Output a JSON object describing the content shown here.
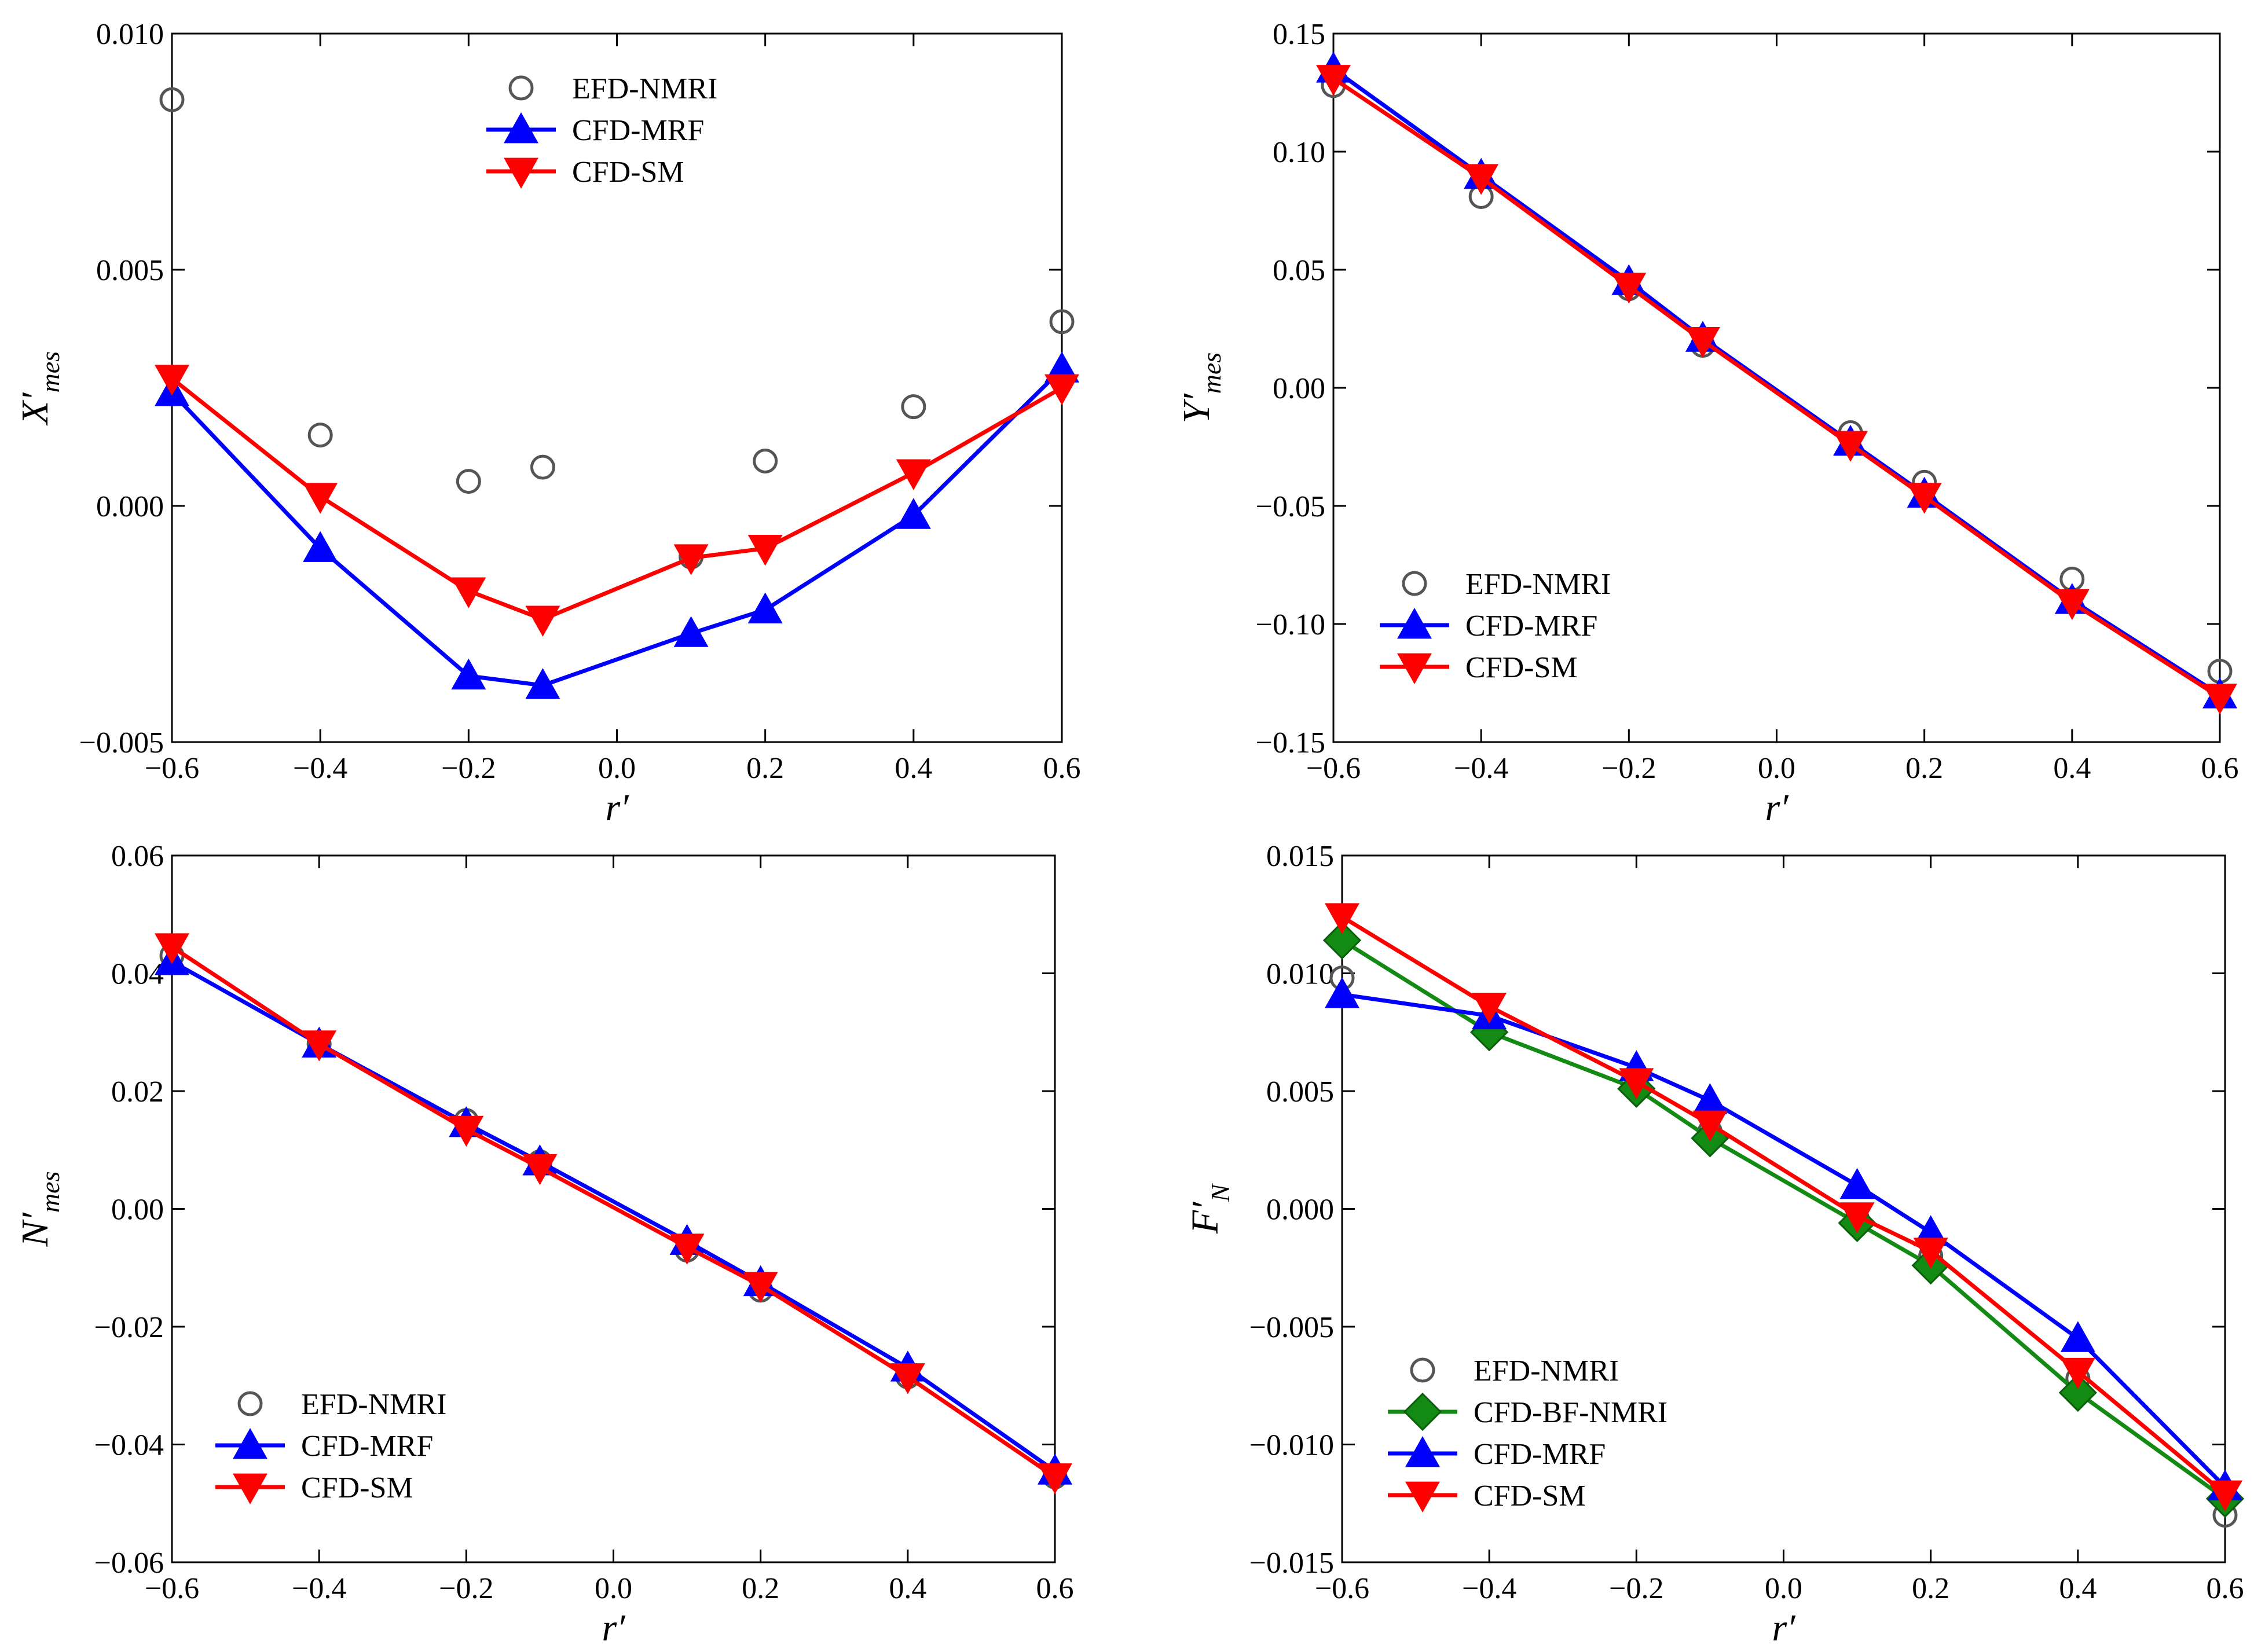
{
  "chart_data": [
    {
      "type": "line",
      "panel": "top-left",
      "xlabel": "r′",
      "ylabel": {
        "main": "X′",
        "sub": "mes"
      },
      "xlim": [
        -0.6,
        0.6
      ],
      "ylim": [
        -0.005,
        0.01
      ],
      "xticks": [
        -0.6,
        -0.4,
        -0.2,
        0.0,
        0.2,
        0.4,
        0.6
      ],
      "xtick_labels": [
        "−0.6",
        "−0.4",
        "−0.2",
        "0.0",
        "0.2",
        "0.4",
        "0.6"
      ],
      "yticks": [
        -0.005,
        0.0,
        0.005,
        0.01
      ],
      "ytick_labels": [
        "−0.005",
        "0.000",
        "0.005",
        "0.010"
      ],
      "legend_position": "top-center",
      "x": [
        -0.6,
        -0.4,
        -0.2,
        -0.1,
        0.1,
        0.2,
        0.4,
        0.6
      ],
      "series": [
        {
          "name": "EFD-NMRI",
          "marker": "circle",
          "color": "#555555",
          "line": false,
          "values": [
            0.0086,
            0.0015,
            0.00052,
            0.00082,
            -0.00108,
            0.00095,
            0.0021,
            0.0039
          ]
        },
        {
          "name": "CFD-MRF",
          "marker": "triangle-up",
          "color": "#0000ff",
          "line": true,
          "values": [
            0.0024,
            -0.0009,
            -0.0036,
            -0.0038,
            -0.0027,
            -0.0022,
            -0.0002,
            0.0029
          ]
        },
        {
          "name": "CFD-SM",
          "marker": "triangle-down",
          "color": "#ff0000",
          "line": true,
          "values": [
            0.0027,
            0.0002,
            -0.0018,
            -0.0024,
            -0.0011,
            -0.0009,
            0.0007,
            0.0025
          ]
        }
      ]
    },
    {
      "type": "line",
      "panel": "top-right",
      "xlabel": "r′",
      "ylabel": {
        "main": "Y′",
        "sub": "mes"
      },
      "xlim": [
        -0.6,
        0.6
      ],
      "ylim": [
        -0.15,
        0.15
      ],
      "xticks": [
        -0.6,
        -0.4,
        -0.2,
        0.0,
        0.2,
        0.4,
        0.6
      ],
      "xtick_labels": [
        "−0.6",
        "−0.4",
        "−0.2",
        "0.0",
        "0.2",
        "0.4",
        "0.6"
      ],
      "yticks": [
        -0.15,
        -0.1,
        -0.05,
        0.0,
        0.05,
        0.1,
        0.15
      ],
      "ytick_labels": [
        "−0.15",
        "−0.10",
        "−0.05",
        "0.00",
        "0.05",
        "0.10",
        "0.15"
      ],
      "legend_position": "bottom-left",
      "x": [
        -0.6,
        -0.4,
        -0.2,
        -0.1,
        0.1,
        0.2,
        0.4,
        0.6
      ],
      "series": [
        {
          "name": "EFD-NMRI",
          "marker": "circle",
          "color": "#555555",
          "line": false,
          "values": [
            0.128,
            0.081,
            0.042,
            0.018,
            -0.019,
            -0.04,
            -0.081,
            -0.12
          ]
        },
        {
          "name": "CFD-MRF",
          "marker": "triangle-up",
          "color": "#0000ff",
          "line": true,
          "values": [
            0.135,
            0.09,
            0.045,
            0.021,
            -0.023,
            -0.045,
            -0.09,
            -0.13
          ]
        },
        {
          "name": "CFD-SM",
          "marker": "triangle-down",
          "color": "#ff0000",
          "line": true,
          "values": [
            0.131,
            0.089,
            0.043,
            0.02,
            -0.024,
            -0.046,
            -0.091,
            -0.131
          ]
        }
      ]
    },
    {
      "type": "line",
      "panel": "bottom-left",
      "xlabel": "r′",
      "ylabel": {
        "main": "N′",
        "sub": "mes"
      },
      "xlim": [
        -0.6,
        0.6
      ],
      "ylim": [
        -0.06,
        0.06
      ],
      "xticks": [
        -0.6,
        -0.4,
        -0.2,
        0.0,
        0.2,
        0.4,
        0.6
      ],
      "xtick_labels": [
        "−0.6",
        "−0.4",
        "−0.2",
        "0.0",
        "0.2",
        "0.4",
        "0.6"
      ],
      "yticks": [
        -0.06,
        -0.04,
        -0.02,
        0.0,
        0.02,
        0.04,
        0.06
      ],
      "ytick_labels": [
        "−0.06",
        "−0.04",
        "−0.02",
        "0.00",
        "0.02",
        "0.04",
        "0.06"
      ],
      "legend_position": "bottom-left",
      "x": [
        -0.6,
        -0.4,
        -0.2,
        -0.1,
        0.1,
        0.2,
        0.4,
        0.6
      ],
      "series": [
        {
          "name": "EFD-NMRI",
          "marker": "circle",
          "color": "#555555",
          "line": false,
          "values": [
            0.043,
            0.028,
            0.015,
            0.008,
            -0.007,
            -0.0138,
            -0.0285,
            -0.0455
          ]
        },
        {
          "name": "CFD-MRF",
          "marker": "triangle-up",
          "color": "#0000ff",
          "line": true,
          "values": [
            0.042,
            0.028,
            0.0145,
            0.008,
            -0.0055,
            -0.0125,
            -0.027,
            -0.0445
          ]
        },
        {
          "name": "CFD-SM",
          "marker": "triangle-down",
          "color": "#ff0000",
          "line": true,
          "values": [
            0.0445,
            0.028,
            0.0135,
            0.007,
            -0.0065,
            -0.013,
            -0.0285,
            -0.0455
          ]
        }
      ]
    },
    {
      "type": "line",
      "panel": "bottom-right",
      "xlabel": "r′",
      "ylabel": {
        "main": "F′",
        "sub": "N"
      },
      "xlim": [
        -0.6,
        0.6
      ],
      "ylim": [
        -0.015,
        0.015
      ],
      "xticks": [
        -0.6,
        -0.4,
        -0.2,
        0.0,
        0.2,
        0.4,
        0.6
      ],
      "xtick_labels": [
        "−0.6",
        "−0.4",
        "−0.2",
        "0.0",
        "0.2",
        "0.4",
        "0.6"
      ],
      "yticks": [
        -0.015,
        -0.01,
        -0.005,
        0.0,
        0.005,
        0.01,
        0.015
      ],
      "ytick_labels": [
        "−0.015",
        "−0.010",
        "−0.005",
        "0.000",
        "0.005",
        "0.010",
        "0.015"
      ],
      "legend_position": "bottom-left",
      "x": [
        -0.6,
        -0.4,
        -0.2,
        -0.1,
        0.1,
        0.2,
        0.4,
        0.6
      ],
      "series": [
        {
          "name": "EFD-NMRI",
          "marker": "circle",
          "color": "#555555",
          "line": false,
          "values": [
            0.0098,
            0.0078,
            0.0055,
            0.0033,
            -0.0004,
            -0.002,
            -0.0072,
            -0.013
          ]
        },
        {
          "name": "CFD-BF-NMRI",
          "marker": "diamond",
          "color": "#138a13",
          "line": true,
          "values": [
            0.0114,
            0.0075,
            0.0051,
            0.003,
            -0.0006,
            -0.0024,
            -0.0078,
            -0.0123
          ]
        },
        {
          "name": "CFD-MRF",
          "marker": "triangle-up",
          "color": "#0000ff",
          "line": true,
          "values": [
            0.0091,
            0.0082,
            0.006,
            0.0046,
            0.001,
            -0.001,
            -0.0055,
            -0.0118
          ]
        },
        {
          "name": "CFD-SM",
          "marker": "triangle-down",
          "color": "#ff0000",
          "line": true,
          "values": [
            0.0124,
            0.0086,
            0.0054,
            0.0036,
            -0.0003,
            -0.0018,
            -0.0069,
            -0.0121
          ]
        }
      ]
    }
  ]
}
